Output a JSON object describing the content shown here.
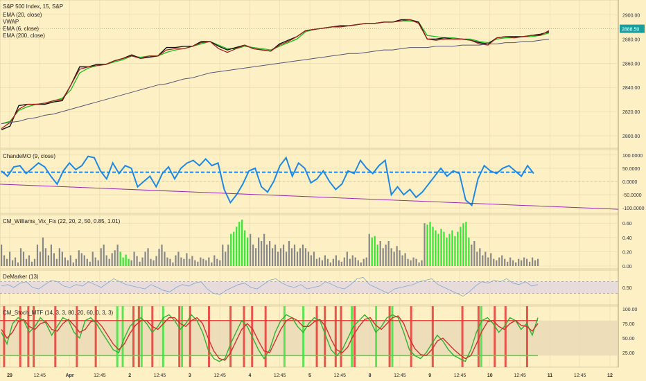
{
  "colors": {
    "background": "#fdf0c4",
    "grid": "#e6d9ad",
    "ema20": "#1fbf1f",
    "vwap": "#111111",
    "ema6": "#a31e1e",
    "ema200": "#555577",
    "cmo": "#1e88e5",
    "cmo_trend": "#9c27b0",
    "vix_gray": "#888888",
    "vix_green": "#32e632",
    "demarker": "#7fa7c9",
    "stoch_k": "#2db32d",
    "stoch_d": "#d0312d",
    "stoch_red_bar": "#e53935",
    "stoch_green_bar": "#43e043",
    "price_tag": "#1b9e9e"
  },
  "chart_data": [
    {
      "type": "line",
      "panel": "price",
      "title": "S&P 500 Index, 15, S&P",
      "legend": [
        "EMA (20, close)",
        "VWAP",
        "EMA (6, close)",
        "EMA (200, close)"
      ],
      "yticks": [
        2800.0,
        2820.0,
        2840.0,
        2860.0,
        2880.0,
        2900.0
      ],
      "ylim": [
        2792,
        2910
      ],
      "last_price": "2888.50",
      "series": [
        {
          "name": "EMA (20, close)",
          "values": [
            2810,
            2812,
            2821,
            2824,
            2826,
            2827,
            2829,
            2831,
            2838,
            2852,
            2856,
            2858,
            2859,
            2861,
            2863,
            2866,
            2865,
            2866,
            2866,
            2869,
            2871,
            2872,
            2874,
            2876,
            2878,
            2875,
            2872,
            2872,
            2874,
            2873,
            2872,
            2871,
            2874,
            2877,
            2880,
            2886,
            2888,
            2889,
            2890,
            2890,
            2891,
            2892,
            2893,
            2893,
            2894,
            2894,
            2895,
            2895,
            2894,
            2883,
            2882,
            2881,
            2881,
            2880,
            2880,
            2878,
            2877,
            2880,
            2881,
            2881,
            2882,
            2882,
            2883,
            2885
          ]
        },
        {
          "name": "VWAP",
          "values": [
            2805,
            2808,
            2825,
            2826,
            2826,
            2826,
            2828,
            2829,
            2842,
            2857,
            2857,
            2859,
            2859,
            2862,
            2864,
            2867,
            2864,
            2865,
            2866,
            2873,
            2873,
            2874,
            2874,
            2878,
            2878,
            2874,
            2871,
            2873,
            2875,
            2872,
            2871,
            2870,
            2876,
            2879,
            2882,
            2887,
            2888,
            2889,
            2890,
            2891,
            2891,
            2892,
            2893,
            2893,
            2894,
            2894,
            2896,
            2896,
            2894,
            2880,
            2880,
            2881,
            2880,
            2880,
            2879,
            2877,
            2876,
            2881,
            2882,
            2882,
            2882,
            2883,
            2884,
            2886
          ]
        },
        {
          "name": "EMA (6, close)",
          "values": [
            2806,
            2811,
            2822,
            2826,
            2826,
            2827,
            2829,
            2830,
            2842,
            2855,
            2857,
            2858,
            2859,
            2862,
            2864,
            2866,
            2864,
            2866,
            2866,
            2871,
            2872,
            2872,
            2874,
            2877,
            2878,
            2872,
            2869,
            2872,
            2875,
            2872,
            2871,
            2870,
            2875,
            2878,
            2882,
            2887,
            2888,
            2889,
            2890,
            2890,
            2891,
            2892,
            2893,
            2893,
            2894,
            2894,
            2895,
            2896,
            2893,
            2880,
            2879,
            2880,
            2880,
            2880,
            2879,
            2876,
            2875,
            2881,
            2882,
            2881,
            2882,
            2883,
            2883,
            2887
          ]
        },
        {
          "name": "EMA (200, close)",
          "values": [
            2810,
            2811,
            2812,
            2814,
            2815,
            2817,
            2818,
            2820,
            2822,
            2824,
            2826,
            2828,
            2830,
            2832,
            2834,
            2836,
            2838,
            2840,
            2842,
            2843,
            2845,
            2847,
            2848,
            2850,
            2852,
            2853,
            2854,
            2855,
            2856,
            2857,
            2858,
            2859,
            2860,
            2861,
            2862,
            2863,
            2864,
            2865,
            2866,
            2867,
            2868,
            2868,
            2869,
            2870,
            2871,
            2871,
            2872,
            2873,
            2873,
            2873,
            2874,
            2874,
            2874,
            2875,
            2875,
            2875,
            2876,
            2876,
            2877,
            2877,
            2878,
            2878,
            2879,
            2880
          ]
        }
      ]
    },
    {
      "type": "line",
      "panel": "cmo",
      "title": "ChandeMO (9, close)",
      "yticks": [
        100.0,
        50.0,
        0.0,
        -50.0,
        -100.0
      ],
      "ylim": [
        -110,
        110
      ],
      "series": [
        {
          "name": "ChandeMO",
          "values": [
            40,
            20,
            55,
            60,
            30,
            50,
            70,
            55,
            20,
            -10,
            40,
            70,
            45,
            60,
            95,
            90,
            40,
            10,
            70,
            30,
            60,
            50,
            -20,
            0,
            20,
            -20,
            30,
            55,
            10,
            50,
            70,
            80,
            60,
            85,
            60,
            70,
            -30,
            -80,
            -50,
            -10,
            40,
            50,
            -20,
            -40,
            0,
            60,
            90,
            20,
            70,
            50,
            -5,
            10,
            40,
            0,
            -30,
            -10,
            40,
            30,
            80,
            50,
            30,
            60,
            80,
            -50,
            -20,
            -50,
            -30,
            -60,
            -40,
            -10,
            20,
            50,
            20,
            40,
            30,
            -70,
            -90,
            10,
            60,
            40,
            30,
            50,
            60,
            40,
            20,
            60,
            30
          ]
        },
        {
          "name": "ChandeMO signal",
          "values": [
            35,
            35,
            35,
            35,
            35,
            35,
            35,
            35,
            35,
            35,
            35,
            35,
            35,
            35,
            35,
            35,
            35,
            35,
            35,
            35,
            35,
            35,
            35,
            35,
            35,
            35,
            35,
            35,
            35,
            35,
            35,
            35,
            35,
            35,
            35,
            35,
            35,
            35,
            35,
            35,
            35,
            35,
            35,
            35,
            35,
            35,
            35,
            35,
            35,
            35,
            35,
            35,
            35,
            35,
            35,
            35,
            35,
            35,
            35,
            35,
            35,
            35,
            35,
            35,
            35,
            35,
            35,
            35,
            35,
            35,
            35,
            35,
            35,
            35,
            35,
            35,
            35,
            35,
            35,
            35,
            35,
            35,
            35,
            35,
            35,
            35,
            35
          ]
        },
        {
          "name": "Trend",
          "values": [
            -10,
            -105
          ]
        }
      ]
    },
    {
      "type": "bar",
      "panel": "vix",
      "title": "CM_Williams_Vix_Fix (22, 20, 2, 50, 0.85, 1.01)",
      "yticks": [
        0.6,
        0.4,
        0.2,
        0.0
      ],
      "ylim": [
        0,
        0.68
      ],
      "values": [
        0.3,
        0.15,
        0.1,
        0.2,
        0.08,
        0.12,
        0.05,
        0.25,
        0.2,
        0.1,
        0.15,
        0.06,
        0.1,
        0.3,
        0.2,
        0.4,
        0.25,
        0.15,
        0.3,
        0.18,
        0.1,
        0.25,
        0.2,
        0.12,
        0.08,
        0.15,
        0.05,
        0.1,
        0.22,
        0.18,
        0.15,
        0.1,
        0.06,
        0.2,
        0.12,
        0.08,
        0.25,
        0.3,
        0.15,
        0.1,
        0.18,
        0.22,
        0.3,
        0.2,
        0.12,
        0.16,
        0.1,
        0.08,
        0.2,
        0.14,
        0.06,
        0.12,
        0.2,
        0.25,
        0.1,
        0.08,
        0.14,
        0.24,
        0.3,
        0.2,
        0.12,
        0.1,
        0.05,
        0.15,
        0.2,
        0.12,
        0.1,
        0.18,
        0.1,
        0.14,
        0.08,
        0.06,
        0.12,
        0.1,
        0.08,
        0.12,
        0.05,
        0.15,
        0.1,
        0.08,
        0.3,
        0.2,
        0.3,
        0.45,
        0.48,
        0.55,
        0.62,
        0.65,
        0.5,
        0.4,
        0.45,
        0.3,
        0.25,
        0.4,
        0.35,
        0.45,
        0.3,
        0.35,
        0.25,
        0.3,
        0.2,
        0.25,
        0.3,
        0.2,
        0.35,
        0.25,
        0.3,
        0.2,
        0.25,
        0.3,
        0.25,
        0.2,
        0.15,
        0.2,
        0.1,
        0.12,
        0.08,
        0.15,
        0.1,
        0.05,
        0.1,
        0.15,
        0.08,
        0.06,
        0.12,
        0.2,
        0.1,
        0.15,
        0.12,
        0.08,
        0.05,
        0.1,
        0.12,
        0.45,
        0.4,
        0.42,
        0.3,
        0.35,
        0.25,
        0.3,
        0.35,
        0.25,
        0.2,
        0.28,
        0.22,
        0.15,
        0.18,
        0.1,
        0.08,
        0.12,
        0.1,
        0.05,
        0.08,
        0.6,
        0.58,
        0.62,
        0.55,
        0.5,
        0.45,
        0.52,
        0.48,
        0.4,
        0.45,
        0.5,
        0.42,
        0.48,
        0.55,
        0.6,
        0.62,
        0.4,
        0.3,
        0.35,
        0.2,
        0.25,
        0.15,
        0.2,
        0.12,
        0.18,
        0.1,
        0.08,
        0.12,
        0.15,
        0.1,
        0.06,
        0.12,
        0.08,
        0.05,
        0.1,
        0.08,
        0.12,
        0.1,
        0.06,
        0.12,
        0.08,
        0.1
      ],
      "highlighted": [
        43,
        44,
        45,
        46,
        83,
        84,
        85,
        86,
        87,
        88,
        89,
        134,
        135,
        136,
        154,
        155,
        156,
        157,
        158,
        159,
        160,
        161,
        162,
        163,
        164,
        165,
        166,
        167,
        168,
        169
      ]
    },
    {
      "type": "line",
      "panel": "demarker",
      "title": "DeMarker (13)",
      "yticks": [
        0.5
      ],
      "ylim": [
        0,
        1
      ],
      "band": [
        0.3,
        0.7
      ],
      "series": [
        {
          "name": "DeMarker",
          "values": [
            0.55,
            0.6,
            0.5,
            0.65,
            0.7,
            0.5,
            0.45,
            0.6,
            0.75,
            0.7,
            0.55,
            0.5,
            0.6,
            0.55,
            0.7,
            0.6,
            0.5,
            0.65,
            0.8,
            0.7,
            0.6,
            0.55,
            0.5,
            0.45,
            0.6,
            0.5,
            0.4,
            0.35,
            0.5,
            0.6,
            0.55,
            0.65,
            0.7,
            0.45,
            0.3,
            0.25,
            0.4,
            0.5,
            0.6,
            0.65,
            0.5,
            0.45,
            0.6,
            0.75,
            0.8,
            0.65,
            0.55,
            0.5,
            0.6,
            0.45,
            0.5,
            0.55,
            0.7,
            0.6,
            0.5,
            0.45,
            0.6,
            0.8,
            0.85,
            0.6,
            0.5,
            0.4,
            0.3,
            0.45,
            0.5,
            0.55,
            0.6,
            0.7,
            0.75,
            0.8,
            0.6,
            0.5,
            0.4,
            0.3,
            0.2,
            0.35,
            0.55,
            0.7,
            0.65,
            0.75,
            0.7,
            0.8,
            0.65,
            0.6,
            0.7,
            0.55,
            0.6
          ]
        }
      ]
    },
    {
      "type": "line",
      "panel": "stoch",
      "title": "CM_Stoch_MTF (14, 3, 3, 80, 20, 60, 0, 3, 3)",
      "yticks": [
        100.0,
        75.0,
        50.0,
        25.0
      ],
      "ylim": [
        5,
        100
      ],
      "levels": [
        80,
        20
      ],
      "series": [
        {
          "name": "K",
          "values": [
            60,
            40,
            75,
            85,
            80,
            60,
            70,
            85,
            75,
            55,
            70,
            85,
            80,
            60,
            50,
            80,
            85,
            75,
            60,
            45,
            30,
            25,
            50,
            70,
            80,
            85,
            75,
            60,
            70,
            85,
            90,
            80,
            65,
            75,
            90,
            80,
            60,
            30,
            15,
            10,
            15,
            40,
            60,
            80,
            70,
            50,
            30,
            15,
            30,
            60,
            80,
            90,
            85,
            70,
            60,
            75,
            85,
            80,
            55,
            30,
            20,
            30,
            50,
            70,
            80,
            90,
            80,
            60,
            70,
            85,
            90,
            85,
            60,
            30,
            20,
            15,
            25,
            40,
            55,
            45,
            30,
            20,
            15,
            10,
            30,
            60,
            80,
            85,
            75,
            60,
            70,
            85,
            80,
            65,
            75,
            55,
            85
          ]
        },
        {
          "name": "D",
          "values": [
            65,
            50,
            60,
            78,
            82,
            70,
            65,
            75,
            78,
            65,
            62,
            75,
            82,
            72,
            60,
            65,
            78,
            80,
            70,
            55,
            40,
            30,
            40,
            58,
            72,
            80,
            80,
            70,
            65,
            75,
            85,
            85,
            75,
            70,
            80,
            85,
            75,
            50,
            28,
            15,
            12,
            25,
            45,
            65,
            75,
            65,
            45,
            28,
            25,
            45,
            65,
            80,
            85,
            80,
            70,
            70,
            78,
            82,
            70,
            48,
            30,
            25,
            35,
            55,
            70,
            82,
            85,
            72,
            65,
            75,
            85,
            88,
            75,
            50,
            32,
            22,
            20,
            30,
            45,
            50,
            40,
            30,
            22,
            15,
            20,
            40,
            62,
            78,
            80,
            70,
            65,
            75,
            80,
            72,
            70,
            62,
            75
          ]
        }
      ],
      "red_bars": [
        1,
        7,
        10,
        12,
        20,
        28,
        35,
        49,
        51,
        56,
        66,
        70,
        77,
        85,
        90,
        93,
        98,
        117,
        120,
        124,
        126,
        131,
        144,
        152,
        160,
        171,
        177,
        183,
        187,
        195
      ],
      "green_bars": [
        43,
        45,
        52,
        60,
        67,
        105,
        112,
        130,
        139,
        145,
        178
      ]
    }
  ],
  "x_axis": {
    "ticks": [
      "29",
      "12:45",
      "Apr",
      "12:45",
      "2",
      "12:45",
      "3",
      "12:45",
      "4",
      "12:45",
      "5",
      "12:45",
      "8",
      "12:45",
      "9",
      "12:45",
      "10",
      "12:45",
      "11",
      "12:45",
      "12"
    ]
  }
}
